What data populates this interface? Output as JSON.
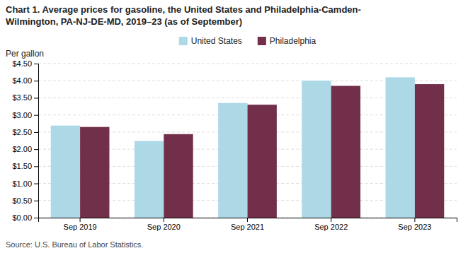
{
  "chart_data": {
    "type": "bar",
    "title": "Chart 1. Average prices for gasoline, the United States and Philadelphia-Camden-\nWilmington, PA-NJ-DE-MD, 2019–23 (as of September)",
    "y_label": "Per gallon",
    "source": "Source: U.S. Bureau of Labor Statistics.",
    "categories": [
      "Sep 2019",
      "Sep 2020",
      "Sep 2021",
      "Sep 2022",
      "Sep 2023"
    ],
    "series": [
      {
        "name": "United States",
        "color": "#ADD8E6",
        "values": [
          2.69,
          2.24,
          3.35,
          4.0,
          4.1
        ]
      },
      {
        "name": "Philadelphia",
        "color": "#722F4A",
        "values": [
          2.65,
          2.44,
          3.3,
          3.85,
          3.9
        ]
      }
    ],
    "ylim": [
      0,
      4.5
    ],
    "yticks": [
      {
        "value": 0.0,
        "label": "$0.00"
      },
      {
        "value": 0.5,
        "label": "$0.50"
      },
      {
        "value": 1.0,
        "label": "$1.00"
      },
      {
        "value": 1.5,
        "label": "$1.50"
      },
      {
        "value": 2.0,
        "label": "$2.00"
      },
      {
        "value": 2.5,
        "label": "$2.50"
      },
      {
        "value": 3.0,
        "label": "$3.00"
      },
      {
        "value": 3.5,
        "label": "$3.50"
      },
      {
        "value": 4.0,
        "label": "$4.00"
      },
      {
        "value": 4.5,
        "label": "$4.50"
      }
    ],
    "grid": true,
    "legend": "top"
  }
}
